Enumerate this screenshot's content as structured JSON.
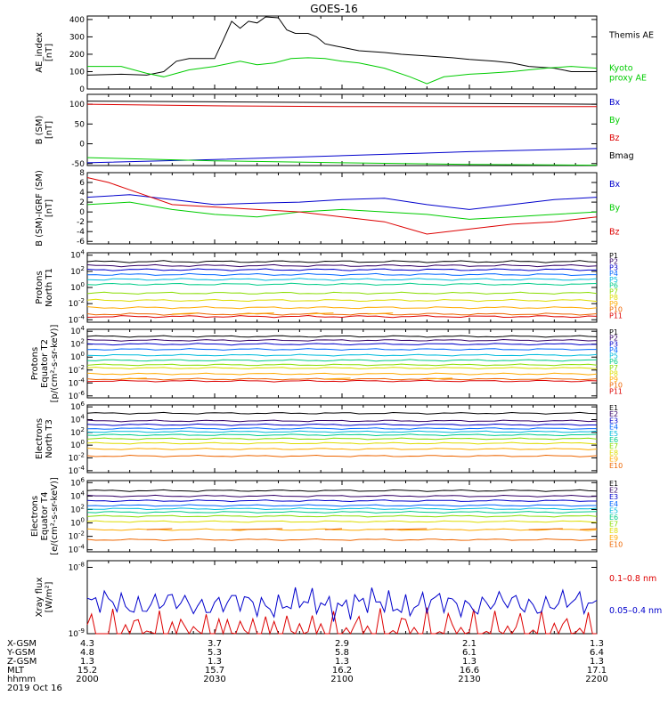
{
  "title": "GOES-16",
  "colors": {
    "black": "#000000",
    "blue": "#0000cc",
    "green": "#00cc00",
    "red": "#dd0000",
    "ch": [
      "#000000",
      "#330066",
      "#0000cc",
      "#0066ff",
      "#00bbdd",
      "#00cc88",
      "#88dd00",
      "#dddd00",
      "#ffaa00",
      "#ee6600",
      "#dd0000",
      "#990000"
    ]
  },
  "footer": {
    "rows": [
      {
        "label": "X-GSM",
        "values": [
          "4.3",
          "3.7",
          "2.9",
          "2.1",
          "1.3"
        ]
      },
      {
        "label": "Y-GSM",
        "values": [
          "4.8",
          "5.3",
          "5.8",
          "6.1",
          "6.4"
        ]
      },
      {
        "label": "Z-GSM",
        "values": [
          "1.3",
          "1.3",
          "1.3",
          "1.3",
          "1.3"
        ]
      },
      {
        "label": "MLT",
        "values": [
          "15.2",
          "15.7",
          "16.2",
          "16.6",
          "17.1"
        ]
      },
      {
        "label": "hhmm",
        "values": [
          "2000",
          "2030",
          "2100",
          "2130",
          "2200"
        ]
      }
    ],
    "date": "2019 Oct 16"
  },
  "chart_data": [
    {
      "type": "line",
      "id": "ae",
      "ylabel": [
        "AE_index",
        "[nT]"
      ],
      "ylim": [
        0,
        420
      ],
      "yticks": [
        "0",
        "100",
        "200",
        "300",
        "400"
      ],
      "ytick_values": [
        0,
        100,
        200,
        300,
        400
      ],
      "xlim": [
        0,
        120
      ],
      "series": [
        {
          "name": "Themis AE",
          "color": "black",
          "legend": [
            "Themis AE"
          ],
          "x": [
            0,
            8,
            14,
            18,
            21,
            24,
            30,
            32,
            34,
            36,
            38,
            40,
            42,
            45,
            47,
            49,
            52,
            54,
            56,
            58,
            60,
            64,
            70,
            74,
            80,
            86,
            90,
            96,
            100,
            104,
            110,
            114,
            120
          ],
          "y": [
            80,
            85,
            80,
            100,
            160,
            175,
            175,
            280,
            390,
            350,
            390,
            380,
            415,
            410,
            340,
            320,
            320,
            300,
            260,
            250,
            240,
            220,
            210,
            200,
            190,
            180,
            170,
            160,
            150,
            130,
            120,
            100,
            100
          ]
        },
        {
          "name": "Kyoto proxy AE",
          "color": "green",
          "legend": [
            "Kyoto",
            "proxy AE"
          ],
          "x": [
            0,
            8,
            14,
            18,
            24,
            30,
            36,
            40,
            44,
            48,
            52,
            56,
            60,
            64,
            70,
            76,
            80,
            84,
            88,
            90,
            94,
            100,
            104,
            108,
            114,
            120
          ],
          "y": [
            130,
            130,
            90,
            70,
            110,
            130,
            160,
            140,
            150,
            175,
            180,
            175,
            160,
            150,
            120,
            70,
            30,
            70,
            80,
            85,
            90,
            100,
            110,
            120,
            130,
            120
          ]
        }
      ]
    },
    {
      "type": "line",
      "id": "bsm",
      "ylabel": [
        "B (SM)",
        "[nT]"
      ],
      "ylim": [
        -55,
        125
      ],
      "yticks": [
        "-50",
        "0",
        "50",
        "100"
      ],
      "ytick_values": [
        -50,
        0,
        50,
        100
      ],
      "xlim": [
        0,
        120
      ],
      "series": [
        {
          "name": "Bx",
          "color": "blue",
          "legend": [
            "Bx"
          ],
          "x": [
            0,
            30,
            60,
            90,
            120
          ],
          "y": [
            -48,
            -40,
            -30,
            -20,
            -12
          ]
        },
        {
          "name": "By",
          "color": "green",
          "legend": [
            "By"
          ],
          "x": [
            0,
            30,
            60,
            90,
            120
          ],
          "y": [
            -35,
            -43,
            -48,
            -52,
            -54
          ]
        },
        {
          "name": "Bz",
          "color": "red",
          "legend": [
            "Bz"
          ],
          "x": [
            0,
            30,
            60,
            90,
            120
          ],
          "y": [
            100,
            96,
            94,
            94,
            94
          ]
        },
        {
          "name": "Bmag",
          "color": "black",
          "legend": [
            "Bmag"
          ],
          "x": [
            0,
            30,
            60,
            90,
            120
          ],
          "y": [
            108,
            106,
            104,
            102,
            100
          ]
        }
      ]
    },
    {
      "type": "line",
      "id": "bigrf",
      "ylabel": [
        "B (SM)-IGRF (SM)",
        "[nT]"
      ],
      "ylim": [
        -6.5,
        8
      ],
      "yticks": [
        "-6",
        "-4",
        "-2",
        "0",
        "2",
        "4",
        "6",
        "8"
      ],
      "ytick_values": [
        -6,
        -4,
        -2,
        0,
        2,
        4,
        6,
        8
      ],
      "xlim": [
        0,
        120
      ],
      "series": [
        {
          "name": "Bx",
          "color": "blue",
          "legend": [
            "Bx"
          ],
          "x": [
            0,
            10,
            20,
            30,
            40,
            50,
            60,
            70,
            80,
            90,
            100,
            110,
            120
          ],
          "y": [
            3.0,
            3.5,
            2.5,
            1.5,
            1.8,
            2.0,
            2.5,
            2.8,
            1.5,
            0.5,
            1.5,
            2.5,
            3.0
          ]
        },
        {
          "name": "By",
          "color": "green",
          "legend": [
            "By"
          ],
          "x": [
            0,
            10,
            20,
            30,
            40,
            50,
            60,
            70,
            80,
            90,
            100,
            110,
            120
          ],
          "y": [
            1.5,
            2.0,
            0.5,
            -0.5,
            -1.0,
            0.0,
            0.5,
            0.0,
            -0.5,
            -1.5,
            -1.0,
            -0.5,
            0.0
          ]
        },
        {
          "name": "Bz",
          "color": "red",
          "legend": [
            "Bz"
          ],
          "x": [
            0,
            5,
            10,
            20,
            30,
            40,
            50,
            60,
            70,
            80,
            90,
            100,
            110,
            120
          ],
          "y": [
            7.0,
            6.0,
            4.5,
            1.5,
            1.0,
            0.5,
            0.0,
            -1.0,
            -2.0,
            -4.5,
            -3.5,
            -2.5,
            -2.0,
            -1.0
          ]
        }
      ]
    },
    {
      "type": "line",
      "id": "p1",
      "ylabel": [
        "Protons",
        "North T1"
      ],
      "log": true,
      "ylim": [
        -4.3,
        4.3
      ],
      "yticks": [
        "10^-4",
        "10^-2",
        "10^0",
        "10^2",
        "10^4"
      ],
      "ytick_values": [
        -4,
        -2,
        0,
        2,
        4
      ],
      "xlim": [
        0,
        120
      ],
      "channels": [
        "P1",
        "P2",
        "P3",
        "P4",
        "P5",
        "P6",
        "P7",
        "P8",
        "P9",
        "P10",
        "P11"
      ],
      "levels": [
        3.2,
        2.7,
        2.2,
        1.6,
        1.0,
        0.4,
        -0.7,
        -1.6,
        -2.5,
        -3.3,
        -3.6
      ],
      "short_segments": {
        "channel": "P9",
        "y": -3.3,
        "x": [
          [
            20,
            26
          ],
          [
            36,
            44
          ],
          [
            52,
            58
          ],
          [
            66,
            72
          ]
        ]
      }
    },
    {
      "type": "line",
      "id": "p2",
      "ylabel": [
        "Protons",
        "Equator T2",
        "[p/(cm²-s-sr-keV)]"
      ],
      "log": true,
      "ylim": [
        -6.3,
        4.3
      ],
      "yticks": [
        "10^-6",
        "10^-4",
        "10^-2",
        "10^0",
        "10^2",
        "10^4"
      ],
      "ytick_values": [
        -6,
        -4,
        -2,
        0,
        2,
        4
      ],
      "xlim": [
        0,
        120
      ],
      "channels": [
        "P1",
        "P2",
        "P3",
        "P4",
        "P5",
        "P6",
        "P7",
        "P8",
        "P9",
        "P10",
        "P11"
      ],
      "levels": [
        3.2,
        2.6,
        2.0,
        1.2,
        0.3,
        -0.5,
        -1.2,
        -1.7,
        -2.6,
        -3.4,
        -3.7
      ],
      "short_segments": {
        "channel": "P9",
        "y": -3.4,
        "x": [
          [
            8,
            14
          ],
          [
            56,
            62
          ],
          [
            80,
            86
          ]
        ]
      }
    },
    {
      "type": "line",
      "id": "e3",
      "ylabel": [
        "Electrons",
        "North T3"
      ],
      "log": true,
      "ylim": [
        -4.3,
        6.3
      ],
      "yticks": [
        "10^-4",
        "10^-2",
        "10^0",
        "10^2",
        "10^4",
        "10^6"
      ],
      "ytick_values": [
        -4,
        -2,
        0,
        2,
        4,
        6
      ],
      "xlim": [
        0,
        120
      ],
      "channels": [
        "E1",
        "E2",
        "E3",
        "E4",
        "E5",
        "E6",
        "E7",
        "E8",
        "E9",
        "E10"
      ],
      "levels": [
        5.0,
        3.8,
        3.2,
        2.6,
        2.1,
        1.6,
        1.0,
        0.3,
        -0.6,
        -1.7
      ]
    },
    {
      "type": "line",
      "id": "e4",
      "ylabel": [
        "Electrons",
        "Equator T4",
        "[e/(cm²-s-sr-keV)]"
      ],
      "log": true,
      "ylim": [
        -4.3,
        6.3
      ],
      "yticks": [
        "10^-4",
        "10^-2",
        "10^0",
        "10^2",
        "10^4",
        "10^6"
      ],
      "ytick_values": [
        -4,
        -2,
        0,
        2,
        4,
        6
      ],
      "xlim": [
        0,
        120
      ],
      "channels": [
        "E1",
        "E2",
        "E3",
        "E4",
        "E5",
        "E6",
        "E7",
        "E8",
        "E9",
        "E10"
      ],
      "levels": [
        4.8,
        4.0,
        3.3,
        2.6,
        2.1,
        1.6,
        1.0,
        0.2,
        -1.0,
        -2.5
      ],
      "short_segments": {
        "channel": "E10",
        "y": -1.0,
        "x": [
          [
            14,
            20
          ],
          [
            34,
            46
          ],
          [
            56,
            60
          ],
          [
            70,
            80
          ],
          [
            104,
            112
          ],
          [
            116,
            120
          ]
        ]
      }
    },
    {
      "type": "line",
      "id": "xray",
      "ylabel": [
        "Xray flux",
        "[W/m²]"
      ],
      "log": true,
      "ylim": [
        -9,
        -7.9
      ],
      "yticks": [
        "10^-8",
        "10^-9"
      ],
      "ytick_values": [
        -8,
        -9
      ],
      "xlim": [
        0,
        120
      ],
      "series": [
        {
          "name": "0.1-0.8 nm",
          "color": "red",
          "legend": [
            "0.1–0.8 nm"
          ]
        },
        {
          "name": "0.05-0.4 nm",
          "color": "blue",
          "legend": [
            "0.05–0.4 nm"
          ]
        }
      ]
    }
  ]
}
